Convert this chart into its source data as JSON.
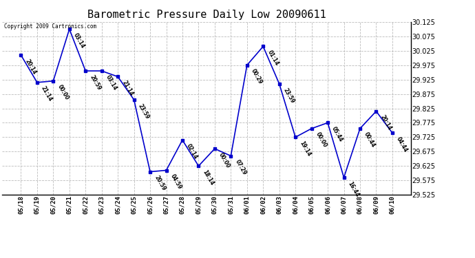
{
  "title": "Barometric Pressure Daily Low 20090611",
  "copyright": "Copyright 2009 Cartronics.com",
  "x_labels": [
    "05/18",
    "05/19",
    "05/20",
    "05/21",
    "05/22",
    "05/23",
    "05/24",
    "05/25",
    "05/26",
    "05/27",
    "05/28",
    "05/29",
    "05/30",
    "05/31",
    "06/01",
    "06/02",
    "06/03",
    "06/04",
    "06/05",
    "06/06",
    "06/07",
    "06/08",
    "06/09",
    "06/10"
  ],
  "y_values": [
    30.01,
    29.915,
    29.92,
    30.1,
    29.955,
    29.955,
    29.935,
    29.855,
    29.605,
    29.61,
    29.715,
    29.625,
    29.685,
    29.66,
    29.975,
    30.04,
    29.91,
    29.725,
    29.755,
    29.775,
    29.585,
    29.755,
    29.815,
    29.74
  ],
  "time_labels": [
    "20:14",
    "21:14",
    "00:00",
    "03:14",
    "20:59",
    "03:14",
    "21:14",
    "23:59",
    "20:59",
    "04:59",
    "02:14",
    "18:14",
    "00:00",
    "07:29",
    "00:29",
    "01:14",
    "23:59",
    "19:14",
    "00:00",
    "05:44",
    "16:44",
    "00:44",
    "20:14",
    "04:44"
  ],
  "ylim_min": 29.525,
  "ylim_max": 30.125,
  "ytick_step": 0.05,
  "line_color": "#0000cc",
  "marker": "s",
  "marker_size": 3,
  "background_color": "#ffffff",
  "grid_color": "#bbbbbb"
}
